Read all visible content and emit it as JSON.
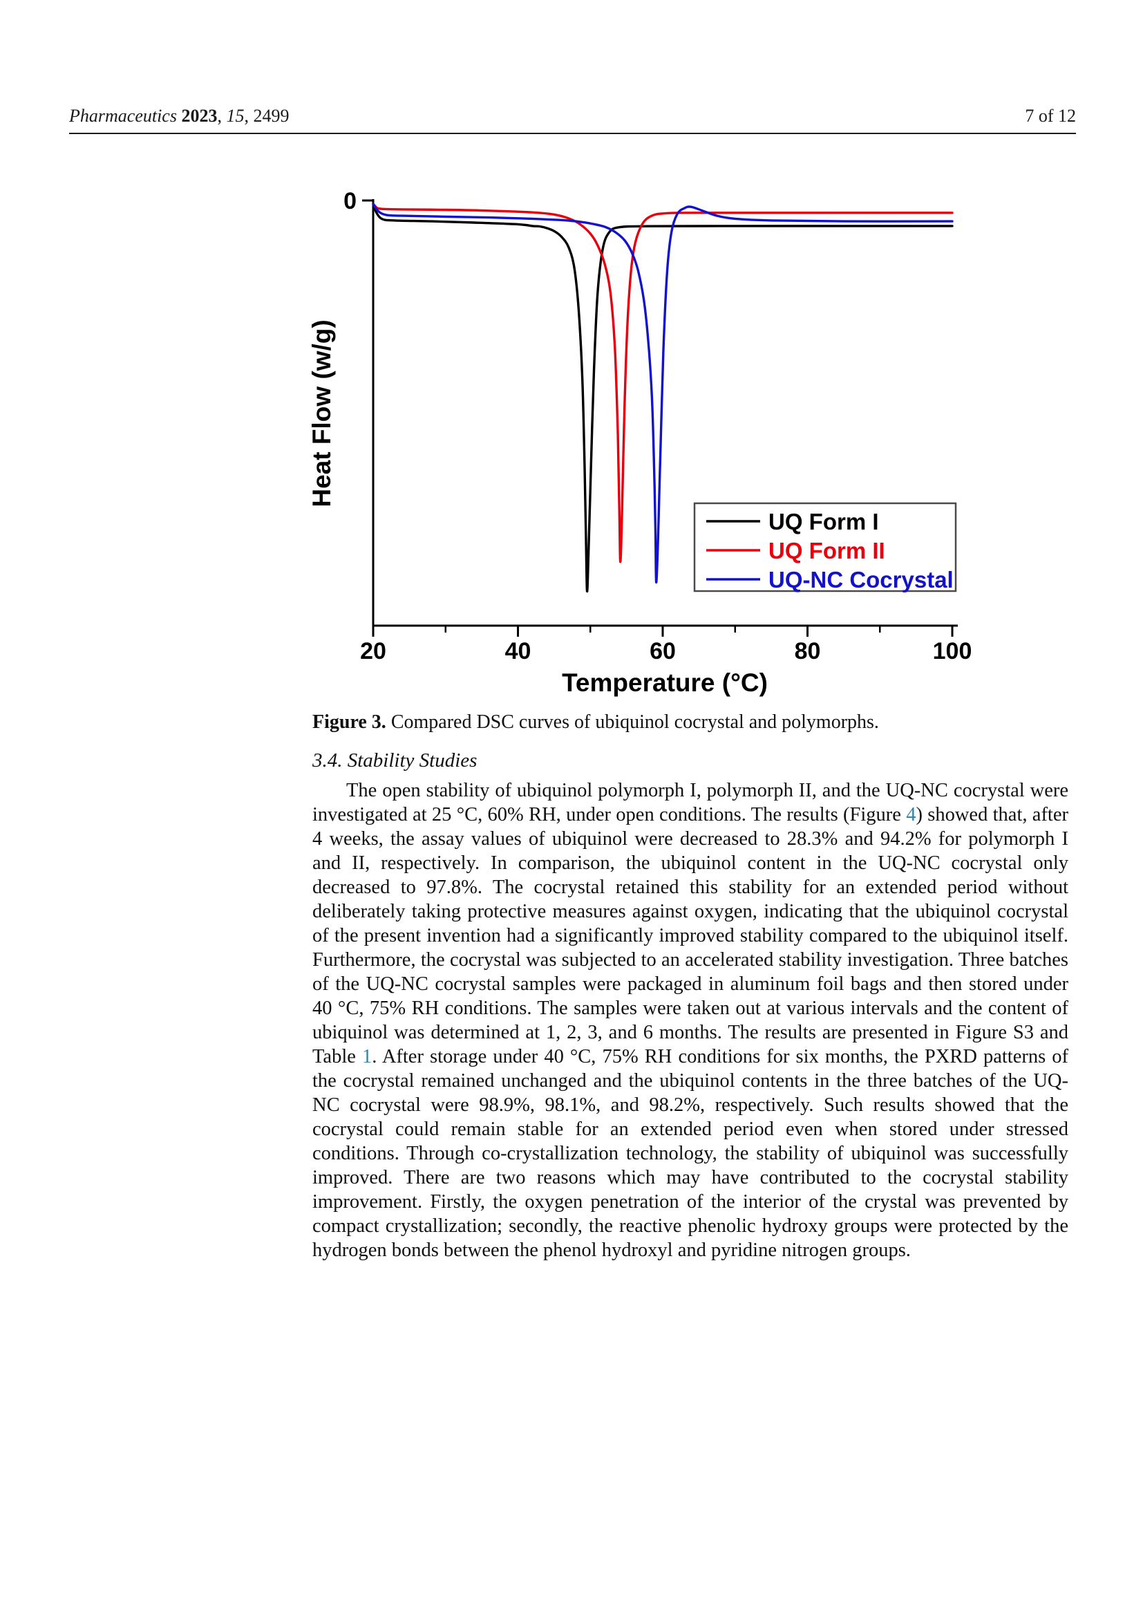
{
  "header": {
    "journal": "Pharmaceutics",
    "year": "2023",
    "volume": "15",
    "article_number": "2499",
    "comma": ", ",
    "space": " ",
    "page_indicator": "7 of 12"
  },
  "chart_data": {
    "type": "line",
    "title": "",
    "xlabel": "Temperature (°C)",
    "ylabel": "Heat Flow (w/g)",
    "xlim": [
      20,
      100.8
    ],
    "ylim": [
      -1.0,
      0.05
    ],
    "x_ticks": [
      20,
      40,
      60,
      80,
      100
    ],
    "x_minor_ticks": [
      30,
      50,
      70,
      90
    ],
    "y_ticks": [
      0
    ],
    "grid": false,
    "legend_position": "lower right",
    "series": [
      {
        "name": "UQ Form I",
        "color": "#000000",
        "peak_temperature_c": 49.5,
        "x": [
          20,
          20.5,
          21.3,
          23,
          28,
          34,
          40,
          42,
          43,
          44,
          45,
          46,
          47,
          47.8,
          48.4,
          48.9,
          49.2,
          49.4,
          49.55,
          49.75,
          50.1,
          50.5,
          51,
          51.7,
          52.6,
          54,
          58,
          70,
          85,
          100
        ],
        "y": [
          -0.008,
          -0.03,
          -0.044,
          -0.047,
          -0.049,
          -0.052,
          -0.056,
          -0.06,
          -0.061,
          -0.065,
          -0.072,
          -0.085,
          -0.11,
          -0.16,
          -0.26,
          -0.42,
          -0.62,
          -0.8,
          -0.919,
          -0.83,
          -0.62,
          -0.4,
          -0.22,
          -0.115,
          -0.075,
          -0.063,
          -0.0605,
          -0.06,
          -0.06,
          -0.06
        ]
      },
      {
        "name": "UQ Form II",
        "color": "#e8000d",
        "peak_temperature_c": 54.1,
        "x": [
          20,
          20.6,
          21.5,
          24,
          30,
          36,
          42,
          45,
          47,
          48.5,
          50,
          51,
          52,
          52.8,
          53.4,
          53.8,
          54,
          54.15,
          54.4,
          54.7,
          55.1,
          55.6,
          56.2,
          57.2,
          58.5,
          60.5,
          65,
          80,
          100
        ],
        "y": [
          -0.008,
          -0.018,
          -0.02,
          -0.021,
          -0.022,
          -0.024,
          -0.028,
          -0.033,
          -0.042,
          -0.055,
          -0.078,
          -0.105,
          -0.15,
          -0.22,
          -0.35,
          -0.55,
          -0.72,
          -0.85,
          -0.72,
          -0.5,
          -0.3,
          -0.17,
          -0.1,
          -0.055,
          -0.036,
          -0.03,
          -0.029,
          -0.029,
          -0.029
        ]
      },
      {
        "name": "UQ-NC Cocrystal",
        "color": "#1212cc",
        "peak_temperature_c": 59.0,
        "x": [
          20,
          20.7,
          21.8,
          24,
          30,
          36,
          42,
          46,
          48,
          50,
          52,
          53.5,
          54.8,
          55.8,
          56.6,
          57.4,
          58,
          58.5,
          58.8,
          59,
          59.1,
          59.35,
          59.7,
          60.1,
          60.6,
          61.2,
          62,
          63,
          63.9,
          65.5,
          67.5,
          70,
          75,
          85,
          100
        ],
        "y": [
          -0.008,
          -0.025,
          -0.034,
          -0.036,
          -0.038,
          -0.04,
          -0.043,
          -0.046,
          -0.049,
          -0.054,
          -0.062,
          -0.075,
          -0.095,
          -0.125,
          -0.165,
          -0.235,
          -0.33,
          -0.46,
          -0.62,
          -0.78,
          -0.898,
          -0.8,
          -0.58,
          -0.35,
          -0.17,
          -0.075,
          -0.032,
          -0.018,
          -0.015,
          -0.024,
          -0.036,
          -0.043,
          -0.047,
          -0.049,
          -0.049
        ]
      }
    ]
  },
  "figure_caption": {
    "label": "Figure 3.",
    "text": " Compared DSC curves of ubiquinol cocrystal and polymorphs."
  },
  "section": {
    "heading": "3.4. Stability Studies"
  },
  "paragraph": {
    "seg1": "The open stability of ubiquinol polymorph I, polymorph II, and the UQ-NC cocrystal were investigated at 25 °C, 60% RH, under open conditions. The results (Figure ",
    "figure_ref": "4",
    "seg2": ") showed that, after 4 weeks, the assay values of ubiquinol were decreased to 28.3% and 94.2% for polymorph I and II, respectively. In comparison, the ubiquinol content in the UQ-NC cocrystal only decreased to 97.8%. The cocrystal retained this stability for an extended period without deliberately taking protective measures against oxygen, indicating that the ubiquinol cocrystal of the present invention had a significantly improved stability compared to the ubiquinol itself. Furthermore, the cocrystal was subjected to an accelerated stability investigation. Three batches of the UQ-NC cocrystal samples were packaged in aluminum foil bags and then stored under 40 °C, 75% RH conditions. The samples were taken out at various intervals and the content of ubiquinol was determined at 1, 2, 3, and 6 months. The results are presented in Figure S3 and Table ",
    "table_ref": "1",
    "seg3": ". After storage under 40 °C, 75% RH conditions for six months, the PXRD patterns of the cocrystal remained unchanged and the ubiquinol contents in the three batches of the UQ-NC cocrystal were 98.9%, 98.1%, and 98.2%, respectively. Such results showed that the cocrystal could remain stable for an extended period even when stored under stressed conditions. Through co-crystallization technology, the stability of ubiquinol was successfully improved. There are two reasons which may have contributed to the cocrystal stability improvement. Firstly, the oxygen penetration of the interior of the crystal was prevented by compact crystallization; secondly, the reactive phenolic hydroxy groups were protected by the hydrogen bonds between the phenol hydroxyl and pyridine nitrogen groups."
  },
  "link_color": "#3584a7"
}
